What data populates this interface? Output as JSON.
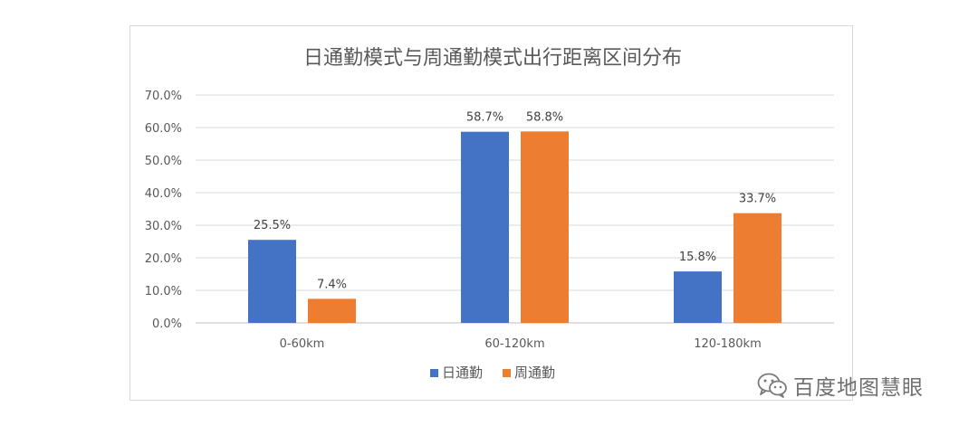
{
  "chart_data": {
    "type": "bar",
    "title": "日通勤模式与周通勤模式出行距离区间分布",
    "xlabel": "",
    "ylabel": "",
    "categories": [
      "0-60km",
      "60-120km",
      "120-180km"
    ],
    "series": [
      {
        "name": "日通勤",
        "values": [
          25.5,
          58.7,
          15.8
        ],
        "labels": [
          "25.5%",
          "58.7%",
          "15.8%"
        ],
        "color": "#4472c4"
      },
      {
        "name": "周通勤",
        "values": [
          7.4,
          58.8,
          33.7
        ],
        "labels": [
          "7.4%",
          "58.8%",
          "33.7%"
        ],
        "color": "#ed7d31"
      }
    ],
    "ylim": [
      0,
      70
    ],
    "yticks": [
      "0.0%",
      "10.0%",
      "20.0%",
      "30.0%",
      "40.0%",
      "50.0%",
      "60.0%",
      "70.0%"
    ],
    "grid": true,
    "legend_position": "bottom"
  },
  "watermark": {
    "text": "百度地图慧眼",
    "icon": "wechat-icon"
  }
}
